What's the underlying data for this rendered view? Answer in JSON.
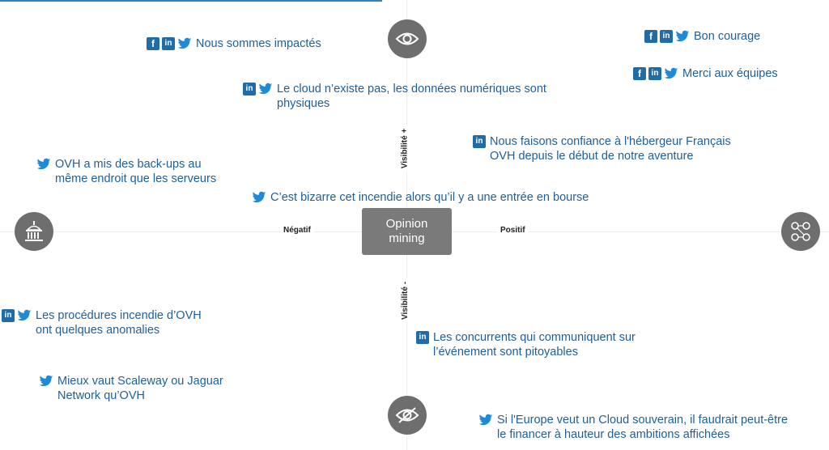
{
  "center": {
    "label": "Opinion\nmining"
  },
  "axes": {
    "left": "Négatif",
    "right": "Positif",
    "top": "Visibilité +",
    "bottom": "Visibilité -"
  },
  "endpoint_icons": {
    "top": "eye-icon",
    "bottom": "eye-slash-icon",
    "left": "institution-icon",
    "right": "network-people-icon"
  },
  "colors": {
    "text": "#1e5f99",
    "icon_bg": "#1f6ca8",
    "circle": "#6e6e6e",
    "center_box": "#7a7a7a"
  },
  "comments": [
    {
      "id": "impactes",
      "networks": [
        "facebook",
        "linkedin",
        "twitter"
      ],
      "text": "Nous sommes impactés"
    },
    {
      "id": "bon-courage",
      "networks": [
        "facebook",
        "linkedin",
        "twitter"
      ],
      "text": "Bon courage"
    },
    {
      "id": "merci",
      "networks": [
        "facebook",
        "linkedin",
        "twitter"
      ],
      "text": "Merci aux équipes"
    },
    {
      "id": "cloud-physique",
      "networks": [
        "linkedin",
        "twitter"
      ],
      "text": "Le cloud n’existe pas, les données numériques sont\nphysiques"
    },
    {
      "id": "confiance",
      "networks": [
        "linkedin"
      ],
      "text": "Nous faisons confiance à l'hébergeur Français\nOVH depuis le début de notre aventure"
    },
    {
      "id": "back-ups",
      "networks": [
        "twitter"
      ],
      "text": "OVH a mis des back-ups au\nmême endroit que les serveurs"
    },
    {
      "id": "bourse",
      "networks": [
        "twitter"
      ],
      "text": "C’est bizarre cet incendie alors qu’il y a une entrée en bourse"
    },
    {
      "id": "procedures",
      "networks": [
        "linkedin",
        "twitter"
      ],
      "text": "Les procédures incendie d’OVH\nont quelques anomalies"
    },
    {
      "id": "concurrents",
      "networks": [
        "linkedin"
      ],
      "text": "Les concurrents qui communiquent sur\nl’événement sont pitoyables"
    },
    {
      "id": "scaleway",
      "networks": [
        "twitter"
      ],
      "text": "Mieux vaut Scaleway ou Jaguar\nNetwork qu’OVH"
    },
    {
      "id": "europe",
      "networks": [
        "twitter"
      ],
      "text": "Si l'Europe veut un Cloud souverain, il faudrait peut-être\nle financer à hauteur des ambitions affichées"
    }
  ]
}
